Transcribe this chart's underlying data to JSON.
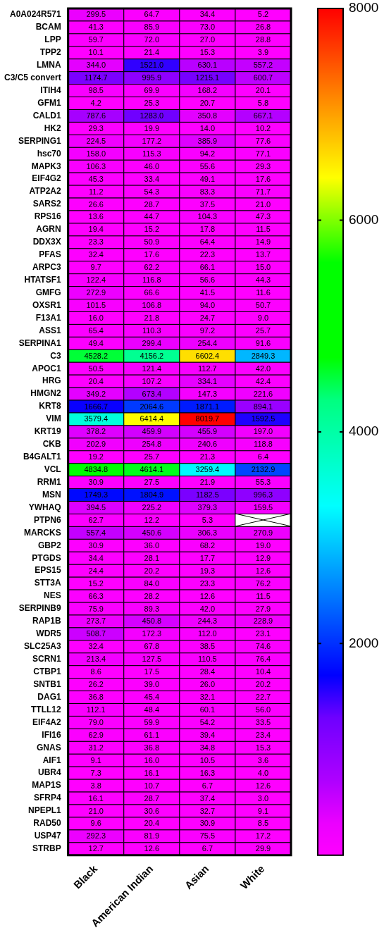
{
  "chart_data": {
    "type": "heatmap",
    "categories": [
      "Black",
      "American Indian",
      "Asian",
      "White"
    ],
    "y_categories": [
      "A0A024R571",
      "BCAM",
      "LPP",
      "TPP2",
      "LMNA",
      "C3/C5 convert",
      "ITIH4",
      "GFM1",
      "CALD1",
      "HK2",
      "SERPING1",
      "hsc70",
      "MAPK3",
      "EIF4G2",
      "ATP2A2",
      "SARS2",
      "RPS16",
      "AGRN",
      "DDX3X",
      "PFAS",
      "ARPC3",
      "HTATSF1",
      "GMFG",
      "OXSR1",
      "F13A1",
      "ASS1",
      "SERPINA1",
      "C3",
      "APOC1",
      "HRG",
      "HMGN2",
      "KRT8",
      "VIM",
      "KRT19",
      "CKB",
      "B4GALT1",
      "VCL",
      "RRM1",
      "MSN",
      "YWHAQ",
      "PTPN6",
      "MARCKS",
      "GBP2",
      "PTGDS",
      "EPS15",
      "STT3A",
      "NES",
      "SERPINB9",
      "RAP1B",
      "WDR5",
      "SLC25A3",
      "SCRN1",
      "CTBP1",
      "SNTB1",
      "DAG1",
      "TTLL12",
      "EIF4A2",
      "IFI16",
      "GNAS",
      "AIF1",
      "UBR4",
      "MAP1S",
      "SFRP4",
      "NPEPL1",
      "RAD50",
      "USP47",
      "STRBP"
    ],
    "cells": [
      [
        299.5,
        64.7,
        34.4,
        5.2
      ],
      [
        41.3,
        85.9,
        73.0,
        26.8
      ],
      [
        59.7,
        72.0,
        27.0,
        28.8
      ],
      [
        10.1,
        21.4,
        15.3,
        3.9
      ],
      [
        344.0,
        1521.0,
        630.1,
        557.2
      ],
      [
        1174.7,
        995.9,
        1215.1,
        600.7
      ],
      [
        98.5,
        69.9,
        168.2,
        20.1
      ],
      [
        4.2,
        25.3,
        20.7,
        5.8
      ],
      [
        787.6,
        1283.0,
        350.8,
        667.1
      ],
      [
        29.3,
        19.9,
        14.0,
        10.2
      ],
      [
        224.5,
        177.2,
        385.9,
        77.6
      ],
      [
        158.0,
        115.3,
        94.2,
        77.1
      ],
      [
        106.3,
        46.0,
        55.6,
        29.3
      ],
      [
        45.3,
        33.4,
        49.1,
        17.6
      ],
      [
        11.2,
        54.3,
        83.3,
        71.7
      ],
      [
        26.6,
        28.7,
        37.5,
        21.0
      ],
      [
        13.6,
        44.7,
        104.3,
        47.3
      ],
      [
        19.4,
        15.2,
        17.8,
        11.5
      ],
      [
        23.3,
        50.9,
        64.4,
        14.9
      ],
      [
        32.4,
        17.6,
        22.3,
        13.7
      ],
      [
        9.7,
        62.2,
        66.1,
        15.0
      ],
      [
        122.4,
        116.8,
        56.6,
        44.3
      ],
      [
        272.9,
        66.6,
        41.5,
        11.6
      ],
      [
        101.5,
        106.8,
        94.0,
        50.7
      ],
      [
        16.0,
        21.8,
        24.7,
        9.0
      ],
      [
        65.4,
        110.3,
        97.2,
        25.7
      ],
      [
        49.4,
        299.4,
        254.4,
        91.6
      ],
      [
        4528.2,
        4156.2,
        6602.4,
        2849.3
      ],
      [
        50.5,
        121.4,
        112.7,
        42.0
      ],
      [
        20.4,
        107.2,
        334.1,
        42.4
      ],
      [
        349.2,
        673.4,
        147.3,
        221.6
      ],
      [
        1666.7,
        2064.6,
        1871.1,
        894.1
      ],
      [
        3579.4,
        6414.4,
        8019.7,
        1592.5
      ],
      [
        378.2,
        459.9,
        455.9,
        197.0
      ],
      [
        202.9,
        254.8,
        240.6,
        118.8
      ],
      [
        19.2,
        25.7,
        21.3,
        6.4
      ],
      [
        4834.8,
        4614.1,
        3259.4,
        2132.9
      ],
      [
        30.9,
        27.5,
        21.9,
        55.3
      ],
      [
        1749.3,
        1804.9,
        1182.5,
        996.3
      ],
      [
        394.5,
        225.2,
        379.3,
        159.5
      ],
      [
        62.7,
        12.2,
        5.3,
        null
      ],
      [
        557.4,
        450.6,
        306.3,
        270.9
      ],
      [
        30.9,
        36.0,
        68.2,
        19.0
      ],
      [
        34.4,
        28.1,
        17.7,
        12.9
      ],
      [
        24.4,
        20.2,
        19.3,
        12.6
      ],
      [
        15.2,
        84.0,
        23.3,
        76.2
      ],
      [
        66.3,
        28.2,
        12.6,
        11.5
      ],
      [
        75.9,
        89.3,
        42.0,
        27.9
      ],
      [
        273.7,
        450.8,
        244.3,
        228.9
      ],
      [
        508.7,
        172.3,
        112.0,
        23.1
      ],
      [
        32.4,
        67.8,
        38.5,
        74.6
      ],
      [
        213.4,
        127.5,
        110.5,
        76.4
      ],
      [
        8.6,
        17.5,
        28.4,
        10.4
      ],
      [
        26.2,
        39.0,
        26.0,
        20.2
      ],
      [
        36.8,
        45.4,
        32.1,
        22.7
      ],
      [
        112.1,
        48.4,
        60.1,
        56.0
      ],
      [
        79.0,
        59.9,
        54.2,
        33.5
      ],
      [
        62.9,
        61.1,
        39.4,
        23.4
      ],
      [
        31.2,
        36.8,
        34.8,
        15.3
      ],
      [
        9.1,
        16.0,
        10.5,
        3.6
      ],
      [
        7.3,
        16.1,
        16.3,
        4.0
      ],
      [
        3.8,
        10.7,
        6.7,
        12.6
      ],
      [
        16.1,
        28.7,
        37.4,
        3.0
      ],
      [
        21.0,
        30.6,
        32.7,
        9.1
      ],
      [
        9.6,
        20.4,
        30.9,
        8.5
      ],
      [
        292.3,
        81.9,
        75.5,
        17.2
      ],
      [
        12.7,
        12.6,
        6.7,
        29.9
      ]
    ],
    "cell_labels": [
      [
        "299.5",
        "64.7",
        "34.4",
        "5.2"
      ],
      [
        "41.3",
        "85.9",
        "73.0",
        "26.8"
      ],
      [
        "59.7",
        "72.0",
        "27.0",
        "28.8"
      ],
      [
        "10.1",
        "21.4",
        "15.3",
        "3.9"
      ],
      [
        "344.0",
        "1521.0",
        "630.1",
        "557.2"
      ],
      [
        "1174.7",
        "995.9",
        "1215.1",
        "600.7"
      ],
      [
        "98.5",
        "69.9",
        "168.2",
        "20.1"
      ],
      [
        "4.2",
        "25.3",
        "20.7",
        "5.8"
      ],
      [
        "787.6",
        "1283.0",
        "350.8",
        "667.1"
      ],
      [
        "29.3",
        "19.9",
        "14.0",
        "10.2"
      ],
      [
        "224.5",
        "177.2",
        "385.9",
        "77.6"
      ],
      [
        "158.0",
        "115.3",
        "94.2",
        "77.1"
      ],
      [
        "106.3",
        "46.0",
        "55.6",
        "29.3"
      ],
      [
        "45.3",
        "33.4",
        "49.1",
        "17.6"
      ],
      [
        "11.2",
        "54.3",
        "83.3",
        "71.7"
      ],
      [
        "26.6",
        "28.7",
        "37.5",
        "21.0"
      ],
      [
        "13.6",
        "44.7",
        "104.3",
        "47.3"
      ],
      [
        "19.4",
        "15.2",
        "17.8",
        "11.5"
      ],
      [
        "23.3",
        "50.9",
        "64.4",
        "14.9"
      ],
      [
        "32.4",
        "17.6",
        "22.3",
        "13.7"
      ],
      [
        "9.7",
        "62.2",
        "66.1",
        "15.0"
      ],
      [
        "122.4",
        "116.8",
        "56.6",
        "44.3"
      ],
      [
        "272.9",
        "66.6",
        "41.5",
        "11.6"
      ],
      [
        "101.5",
        "106.8",
        "94.0",
        "50.7"
      ],
      [
        "16.0",
        "21.8",
        "24.7",
        "9.0"
      ],
      [
        "65.4",
        "110.3",
        "97.2",
        "25.7"
      ],
      [
        "49.4",
        "299.4",
        "254.4",
        "91.6"
      ],
      [
        "4528.2",
        "4156.2",
        "6602.4",
        "2849.3"
      ],
      [
        "50.5",
        "121.4",
        "112.7",
        "42.0"
      ],
      [
        "20.4",
        "107.2",
        "334.1",
        "42.4"
      ],
      [
        "349.2",
        "673.4",
        "147.3",
        "221.6"
      ],
      [
        "1666.7",
        "2064.6",
        "1871.1",
        "894.1"
      ],
      [
        "3579.4",
        "6414.4",
        "8019.7",
        "1592.5"
      ],
      [
        "378.2",
        "459.9",
        "455.9",
        "197.0"
      ],
      [
        "202.9",
        "254.8",
        "240.6",
        "118.8"
      ],
      [
        "19.2",
        "25.7",
        "21.3",
        "6.4"
      ],
      [
        "4834.8",
        "4614.1",
        "3259.4",
        "2132.9"
      ],
      [
        "30.9",
        "27.5",
        "21.9",
        "55.3"
      ],
      [
        "1749.3",
        "1804.9",
        "1182.5",
        "996.3"
      ],
      [
        "394.5",
        "225.2",
        "379.3",
        "159.5"
      ],
      [
        "62.7",
        "12.2",
        "5.3",
        null
      ],
      [
        "557.4",
        "450.6",
        "306.3",
        "270.9"
      ],
      [
        "30.9",
        "36.0",
        "68.2",
        "19.0"
      ],
      [
        "34.4",
        "28.1",
        "17.7",
        "12.9"
      ],
      [
        "24.4",
        "20.2",
        "19.3",
        "12.6"
      ],
      [
        "15.2",
        "84.0",
        "23.3",
        "76.2"
      ],
      [
        "66.3",
        "28.2",
        "12.6",
        "11.5"
      ],
      [
        "75.9",
        "89.3",
        "42.0",
        "27.9"
      ],
      [
        "273.7",
        "450.8",
        "244.3",
        "228.9"
      ],
      [
        "508.7",
        "172.3",
        "112.0",
        "23.1"
      ],
      [
        "32.4",
        "67.8",
        "38.5",
        "74.6"
      ],
      [
        "213.4",
        "127.5",
        "110.5",
        "76.4"
      ],
      [
        "8.6",
        "17.5",
        "28.4",
        "10.4"
      ],
      [
        "26.2",
        "39.0",
        "26.0",
        "20.2"
      ],
      [
        "36.8",
        "45.4",
        "32.1",
        "22.7"
      ],
      [
        "112.1",
        "48.4",
        "60.1",
        "56.0"
      ],
      [
        "79.0",
        "59.9",
        "54.2",
        "33.5"
      ],
      [
        "62.9",
        "61.1",
        "39.4",
        "23.4"
      ],
      [
        "31.2",
        "36.8",
        "34.8",
        "15.3"
      ],
      [
        "9.1",
        "16.0",
        "10.5",
        "3.6"
      ],
      [
        "7.3",
        "16.1",
        "16.3",
        "4.0"
      ],
      [
        "3.8",
        "10.7",
        "6.7",
        "12.6"
      ],
      [
        "16.1",
        "28.7",
        "37.4",
        "3.0"
      ],
      [
        "21.0",
        "30.6",
        "32.7",
        "9.1"
      ],
      [
        "9.6",
        "20.4",
        "30.9",
        "8.5"
      ],
      [
        "292.3",
        "81.9",
        "75.5",
        "17.2"
      ],
      [
        "12.7",
        "12.6",
        "6.7",
        "29.9"
      ]
    ],
    "data_labels": true,
    "clim": [
      0,
      8000
    ],
    "cticks": [
      2000,
      4000,
      6000,
      8000
    ]
  }
}
